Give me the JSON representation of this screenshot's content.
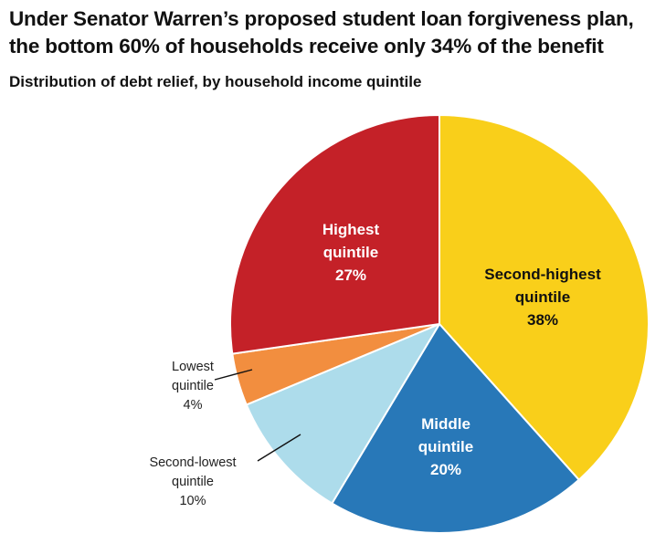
{
  "title_line1": "Under Senator Warren’s proposed student loan forgiveness plan,",
  "title_line2": "the bottom 60% of households receive only 34% of the benefit",
  "subtitle": "Distribution of debt relief, by household income quintile",
  "chart_data": {
    "type": "pie",
    "title": "Under Senator Warren’s proposed student loan forgiveness plan, the bottom 60% of households receive only 34% of the benefit",
    "subtitle": "Distribution of debt relief, by household income quintile",
    "unit": "%",
    "slices": [
      {
        "id": "second-highest",
        "label_lines": [
          "Second-highest",
          "quintile"
        ],
        "value": 38,
        "value_label": "38%",
        "color": "#F9CF1A",
        "text_color": "#111111",
        "label_position": "inside"
      },
      {
        "id": "middle",
        "label_lines": [
          "Middle",
          "quintile"
        ],
        "value": 20,
        "value_label": "20%",
        "color": "#2878B8",
        "text_color": "#ffffff",
        "label_position": "inside"
      },
      {
        "id": "second-lowest",
        "label_lines": [
          "Second-lowest",
          "quintile"
        ],
        "value": 10,
        "value_label": "10%",
        "color": "#ADDCEB",
        "text_color": "#222222",
        "label_position": "outside"
      },
      {
        "id": "lowest",
        "label_lines": [
          "Lowest",
          "quintile"
        ],
        "value": 4,
        "value_label": "4%",
        "color": "#F28E3F",
        "text_color": "#222222",
        "label_position": "outside"
      },
      {
        "id": "highest",
        "label_lines": [
          "Highest",
          "quintile"
        ],
        "value": 27,
        "value_label": "27%",
        "color": "#C42128",
        "text_color": "#ffffff",
        "label_position": "inside"
      }
    ],
    "start": "top (12 o'clock)",
    "direction": "clockwise"
  }
}
